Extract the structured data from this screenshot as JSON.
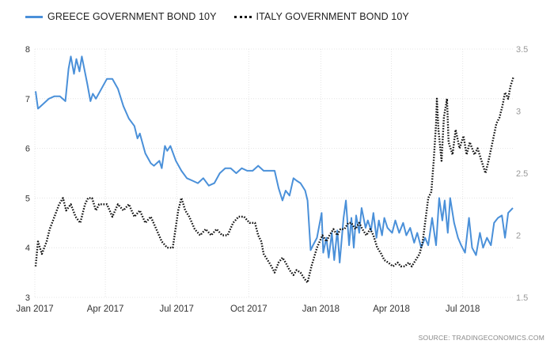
{
  "legend": {
    "greece_label": "GREECE GOVERNMENT BOND 10Y",
    "italy_label": "ITALY GOVERNMENT BOND 10Y"
  },
  "source": "SOURCE: TRADINGECONOMICS.COM",
  "colors": {
    "greece": "#4a90d9",
    "italy": "#111111",
    "grid": "#e4e4e4"
  },
  "chart_data": {
    "type": "line",
    "x_axis": {
      "range": [
        "2017-01-01",
        "2018-09-05"
      ],
      "ticks": [
        {
          "date": "2017-01-01",
          "label": "Jan 2017"
        },
        {
          "date": "2017-04-01",
          "label": "Apr 2017"
        },
        {
          "date": "2017-07-01",
          "label": "Jul 2017"
        },
        {
          "date": "2017-10-01",
          "label": "Oct 2017"
        },
        {
          "date": "2018-01-01",
          "label": "Jan 2018"
        },
        {
          "date": "2018-04-01",
          "label": "Apr 2018"
        },
        {
          "date": "2018-07-01",
          "label": "Jul 2018"
        }
      ]
    },
    "y_left": {
      "range": [
        3,
        8
      ],
      "ticks": [
        "3",
        "4",
        "5",
        "6",
        "7",
        "8"
      ]
    },
    "y_right": {
      "range": [
        1.5,
        3.5
      ],
      "ticks": [
        "1.5",
        "2",
        "2.5",
        "3",
        "3.5"
      ]
    },
    "grid": true,
    "legend_position": "top-left",
    "series": [
      {
        "name": "GREECE GOVERNMENT BOND 10Y",
        "axis": "left",
        "style": "solid",
        "points": [
          [
            "2017-01-02",
            7.15
          ],
          [
            "2017-01-05",
            6.8
          ],
          [
            "2017-01-12",
            6.9
          ],
          [
            "2017-01-19",
            7.0
          ],
          [
            "2017-01-26",
            7.05
          ],
          [
            "2017-02-02",
            7.05
          ],
          [
            "2017-02-09",
            6.95
          ],
          [
            "2017-02-13",
            7.6
          ],
          [
            "2017-02-16",
            7.85
          ],
          [
            "2017-02-20",
            7.5
          ],
          [
            "2017-02-23",
            7.8
          ],
          [
            "2017-02-27",
            7.55
          ],
          [
            "2017-03-02",
            7.85
          ],
          [
            "2017-03-09",
            7.3
          ],
          [
            "2017-03-13",
            6.95
          ],
          [
            "2017-03-16",
            7.1
          ],
          [
            "2017-03-20",
            7.0
          ],
          [
            "2017-03-27",
            7.2
          ],
          [
            "2017-04-03",
            7.4
          ],
          [
            "2017-04-10",
            7.4
          ],
          [
            "2017-04-17",
            7.2
          ],
          [
            "2017-04-24",
            6.85
          ],
          [
            "2017-05-01",
            6.6
          ],
          [
            "2017-05-08",
            6.45
          ],
          [
            "2017-05-12",
            6.2
          ],
          [
            "2017-05-15",
            6.3
          ],
          [
            "2017-05-22",
            5.9
          ],
          [
            "2017-05-29",
            5.7
          ],
          [
            "2017-06-02",
            5.65
          ],
          [
            "2017-06-09",
            5.75
          ],
          [
            "2017-06-12",
            5.6
          ],
          [
            "2017-06-16",
            6.05
          ],
          [
            "2017-06-19",
            5.95
          ],
          [
            "2017-06-23",
            6.05
          ],
          [
            "2017-06-30",
            5.75
          ],
          [
            "2017-07-07",
            5.55
          ],
          [
            "2017-07-14",
            5.4
          ],
          [
            "2017-07-21",
            5.35
          ],
          [
            "2017-07-28",
            5.3
          ],
          [
            "2017-08-04",
            5.4
          ],
          [
            "2017-08-11",
            5.25
          ],
          [
            "2017-08-18",
            5.3
          ],
          [
            "2017-08-25",
            5.5
          ],
          [
            "2017-09-01",
            5.6
          ],
          [
            "2017-09-08",
            5.6
          ],
          [
            "2017-09-15",
            5.5
          ],
          [
            "2017-09-22",
            5.6
          ],
          [
            "2017-09-29",
            5.55
          ],
          [
            "2017-10-06",
            5.55
          ],
          [
            "2017-10-13",
            5.65
          ],
          [
            "2017-10-20",
            5.55
          ],
          [
            "2017-10-27",
            5.55
          ],
          [
            "2017-11-03",
            5.55
          ],
          [
            "2017-11-08",
            5.2
          ],
          [
            "2017-11-13",
            4.95
          ],
          [
            "2017-11-17",
            5.15
          ],
          [
            "2017-11-22",
            5.05
          ],
          [
            "2017-11-27",
            5.4
          ],
          [
            "2017-12-01",
            5.35
          ],
          [
            "2017-12-06",
            5.3
          ],
          [
            "2017-12-12",
            5.15
          ],
          [
            "2017-12-15",
            4.95
          ],
          [
            "2017-12-19",
            3.95
          ],
          [
            "2017-12-22",
            4.05
          ],
          [
            "2017-12-27",
            4.2
          ],
          [
            "2018-01-02",
            4.7
          ],
          [
            "2018-01-04",
            3.9
          ],
          [
            "2018-01-08",
            4.2
          ],
          [
            "2018-01-11",
            3.8
          ],
          [
            "2018-01-15",
            4.3
          ],
          [
            "2018-01-18",
            3.75
          ],
          [
            "2018-01-22",
            4.35
          ],
          [
            "2018-01-25",
            3.7
          ],
          [
            "2018-01-30",
            4.6
          ],
          [
            "2018-02-02",
            4.95
          ],
          [
            "2018-02-06",
            4.05
          ],
          [
            "2018-02-09",
            4.6
          ],
          [
            "2018-02-12",
            4.0
          ],
          [
            "2018-02-15",
            4.65
          ],
          [
            "2018-02-19",
            4.3
          ],
          [
            "2018-02-22",
            4.8
          ],
          [
            "2018-02-27",
            4.4
          ],
          [
            "2018-03-02",
            4.55
          ],
          [
            "2018-03-06",
            4.35
          ],
          [
            "2018-03-09",
            4.7
          ],
          [
            "2018-03-13",
            4.2
          ],
          [
            "2018-03-16",
            4.55
          ],
          [
            "2018-03-20",
            4.25
          ],
          [
            "2018-03-23",
            4.6
          ],
          [
            "2018-03-27",
            4.4
          ],
          [
            "2018-04-02",
            4.3
          ],
          [
            "2018-04-06",
            4.55
          ],
          [
            "2018-04-11",
            4.3
          ],
          [
            "2018-04-16",
            4.5
          ],
          [
            "2018-04-20",
            4.25
          ],
          [
            "2018-04-25",
            4.4
          ],
          [
            "2018-04-30",
            4.1
          ],
          [
            "2018-05-04",
            4.3
          ],
          [
            "2018-05-09",
            4.0
          ],
          [
            "2018-05-14",
            4.2
          ],
          [
            "2018-05-18",
            4.05
          ],
          [
            "2018-05-23",
            4.6
          ],
          [
            "2018-05-28",
            4.05
          ],
          [
            "2018-06-01",
            5.0
          ],
          [
            "2018-06-05",
            4.55
          ],
          [
            "2018-06-08",
            4.95
          ],
          [
            "2018-06-12",
            4.3
          ],
          [
            "2018-06-15",
            5.0
          ],
          [
            "2018-06-20",
            4.5
          ],
          [
            "2018-06-25",
            4.2
          ],
          [
            "2018-06-29",
            4.05
          ],
          [
            "2018-07-04",
            3.9
          ],
          [
            "2018-07-09",
            4.6
          ],
          [
            "2018-07-13",
            4.0
          ],
          [
            "2018-07-18",
            3.85
          ],
          [
            "2018-07-23",
            4.3
          ],
          [
            "2018-07-27",
            4.0
          ],
          [
            "2018-08-01",
            4.2
          ],
          [
            "2018-08-06",
            4.05
          ],
          [
            "2018-08-10",
            4.5
          ],
          [
            "2018-08-15",
            4.6
          ],
          [
            "2018-08-20",
            4.65
          ],
          [
            "2018-08-24",
            4.2
          ],
          [
            "2018-08-28",
            4.7
          ],
          [
            "2018-09-03",
            4.8
          ]
        ]
      },
      {
        "name": "ITALY GOVERNMENT BOND 10Y",
        "axis": "right",
        "style": "dotted",
        "points": [
          [
            "2017-01-02",
            1.75
          ],
          [
            "2017-01-05",
            1.95
          ],
          [
            "2017-01-10",
            1.85
          ],
          [
            "2017-01-16",
            1.95
          ],
          [
            "2017-01-20",
            2.05
          ],
          [
            "2017-01-26",
            2.15
          ],
          [
            "2017-02-01",
            2.25
          ],
          [
            "2017-02-06",
            2.3
          ],
          [
            "2017-02-10",
            2.2
          ],
          [
            "2017-02-16",
            2.25
          ],
          [
            "2017-02-22",
            2.15
          ],
          [
            "2017-02-28",
            2.1
          ],
          [
            "2017-03-06",
            2.25
          ],
          [
            "2017-03-10",
            2.3
          ],
          [
            "2017-03-15",
            2.3
          ],
          [
            "2017-03-20",
            2.2
          ],
          [
            "2017-03-24",
            2.25
          ],
          [
            "2017-03-29",
            2.25
          ],
          [
            "2017-04-03",
            2.25
          ],
          [
            "2017-04-10",
            2.15
          ],
          [
            "2017-04-17",
            2.25
          ],
          [
            "2017-04-24",
            2.2
          ],
          [
            "2017-05-01",
            2.25
          ],
          [
            "2017-05-08",
            2.15
          ],
          [
            "2017-05-15",
            2.2
          ],
          [
            "2017-05-22",
            2.1
          ],
          [
            "2017-05-29",
            2.15
          ],
          [
            "2017-06-05",
            2.05
          ],
          [
            "2017-06-12",
            1.95
          ],
          [
            "2017-06-19",
            1.9
          ],
          [
            "2017-06-26",
            1.9
          ],
          [
            "2017-07-03",
            2.2
          ],
          [
            "2017-07-07",
            2.3
          ],
          [
            "2017-07-12",
            2.2
          ],
          [
            "2017-07-17",
            2.15
          ],
          [
            "2017-07-24",
            2.05
          ],
          [
            "2017-07-31",
            2.0
          ],
          [
            "2017-08-07",
            2.05
          ],
          [
            "2017-08-14",
            2.0
          ],
          [
            "2017-08-21",
            2.05
          ],
          [
            "2017-08-28",
            2.0
          ],
          [
            "2017-09-04",
            2.0
          ],
          [
            "2017-09-11",
            2.1
          ],
          [
            "2017-09-18",
            2.15
          ],
          [
            "2017-09-25",
            2.15
          ],
          [
            "2017-10-02",
            2.1
          ],
          [
            "2017-10-09",
            2.1
          ],
          [
            "2017-10-13",
            2.0
          ],
          [
            "2017-10-17",
            1.95
          ],
          [
            "2017-10-20",
            1.85
          ],
          [
            "2017-10-25",
            1.8
          ],
          [
            "2017-10-30",
            1.75
          ],
          [
            "2017-11-03",
            1.7
          ],
          [
            "2017-11-08",
            1.78
          ],
          [
            "2017-11-13",
            1.82
          ],
          [
            "2017-11-17",
            1.78
          ],
          [
            "2017-11-22",
            1.72
          ],
          [
            "2017-11-27",
            1.68
          ],
          [
            "2017-12-01",
            1.72
          ],
          [
            "2017-12-06",
            1.7
          ],
          [
            "2017-12-11",
            1.65
          ],
          [
            "2017-12-15",
            1.62
          ],
          [
            "2017-12-20",
            1.75
          ],
          [
            "2017-12-27",
            1.9
          ],
          [
            "2018-01-03",
            2.0
          ],
          [
            "2018-01-08",
            1.95
          ],
          [
            "2018-01-12",
            2.0
          ],
          [
            "2018-01-17",
            2.05
          ],
          [
            "2018-01-22",
            2.0
          ],
          [
            "2018-01-26",
            2.05
          ],
          [
            "2018-01-31",
            2.05
          ],
          [
            "2018-02-05",
            2.1
          ],
          [
            "2018-02-09",
            2.1
          ],
          [
            "2018-02-14",
            2.05
          ],
          [
            "2018-02-19",
            2.1
          ],
          [
            "2018-02-23",
            2.05
          ],
          [
            "2018-02-28",
            2.0
          ],
          [
            "2018-03-05",
            2.05
          ],
          [
            "2018-03-09",
            2.0
          ],
          [
            "2018-03-14",
            1.9
          ],
          [
            "2018-03-19",
            1.85
          ],
          [
            "2018-03-23",
            1.8
          ],
          [
            "2018-03-28",
            1.78
          ],
          [
            "2018-04-03",
            1.75
          ],
          [
            "2018-04-09",
            1.78
          ],
          [
            "2018-04-13",
            1.75
          ],
          [
            "2018-04-18",
            1.75
          ],
          [
            "2018-04-23",
            1.78
          ],
          [
            "2018-04-27",
            1.75
          ],
          [
            "2018-05-02",
            1.8
          ],
          [
            "2018-05-07",
            1.85
          ],
          [
            "2018-05-11",
            1.95
          ],
          [
            "2018-05-15",
            2.15
          ],
          [
            "2018-05-18",
            2.3
          ],
          [
            "2018-05-22",
            2.35
          ],
          [
            "2018-05-25",
            2.6
          ],
          [
            "2018-05-28",
            2.9
          ],
          [
            "2018-05-29",
            3.1
          ],
          [
            "2018-05-31",
            2.85
          ],
          [
            "2018-06-04",
            2.6
          ],
          [
            "2018-06-07",
            2.95
          ],
          [
            "2018-06-11",
            3.1
          ],
          [
            "2018-06-13",
            2.75
          ],
          [
            "2018-06-18",
            2.65
          ],
          [
            "2018-06-22",
            2.85
          ],
          [
            "2018-06-27",
            2.7
          ],
          [
            "2018-07-02",
            2.8
          ],
          [
            "2018-07-06",
            2.65
          ],
          [
            "2018-07-10",
            2.75
          ],
          [
            "2018-07-16",
            2.65
          ],
          [
            "2018-07-20",
            2.7
          ],
          [
            "2018-07-25",
            2.6
          ],
          [
            "2018-07-30",
            2.5
          ],
          [
            "2018-08-03",
            2.6
          ],
          [
            "2018-08-08",
            2.75
          ],
          [
            "2018-08-13",
            2.9
          ],
          [
            "2018-08-17",
            2.95
          ],
          [
            "2018-08-21",
            3.05
          ],
          [
            "2018-08-24",
            3.15
          ],
          [
            "2018-08-28",
            3.1
          ],
          [
            "2018-08-31",
            3.2
          ],
          [
            "2018-09-04",
            3.28
          ]
        ]
      }
    ]
  }
}
